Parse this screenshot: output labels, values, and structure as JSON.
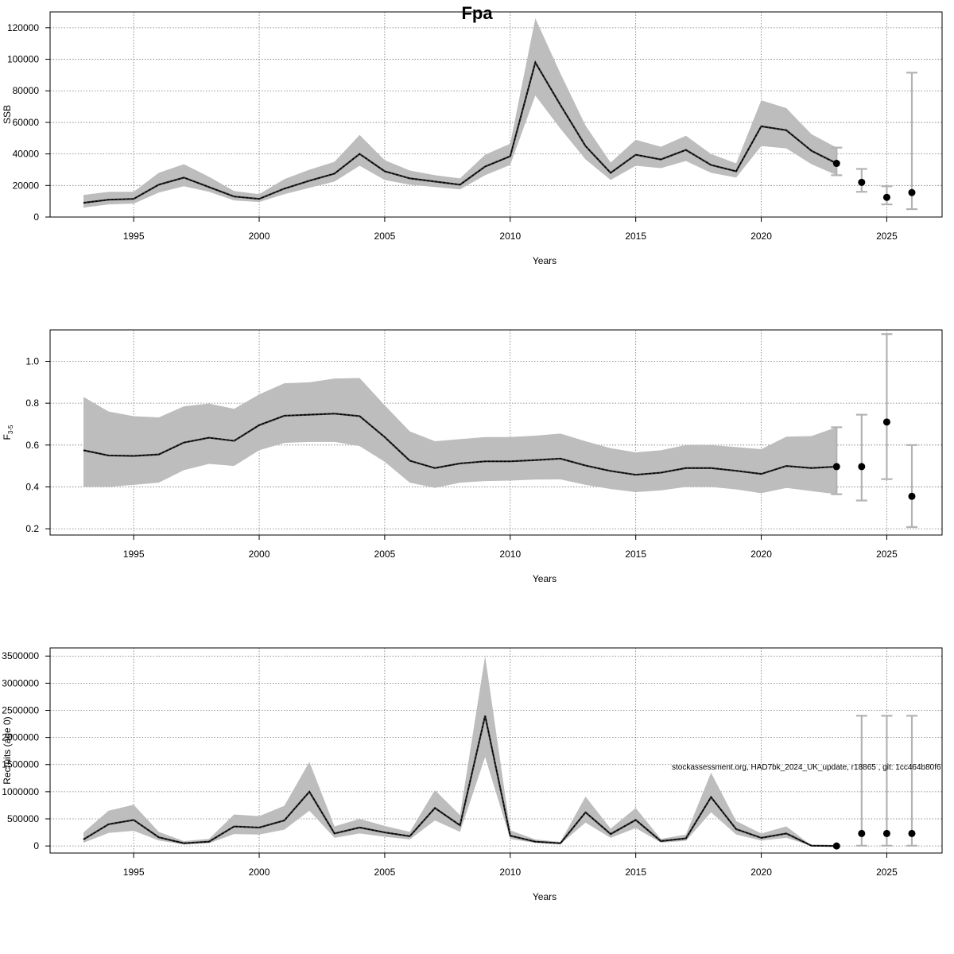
{
  "title": "Fpa",
  "watermark": "stockassessment.org, HAD7bk_2024_UK_update, r18865 , git: 1cc464b80f6",
  "colors": {
    "band": "#bdbdbd",
    "line": "#000000",
    "errorbar": "#b3b3b3",
    "grid": "#777777"
  },
  "chart_data": [
    {
      "type": "line",
      "ylabel": "SSB",
      "xlabel": "Years",
      "xlim": [
        1993,
        2026
      ],
      "ylim": [
        0,
        130000
      ],
      "xticks": [
        1995,
        2000,
        2005,
        2010,
        2015,
        2020,
        2025
      ],
      "xtick_labels": [
        "1995",
        "2000",
        "2005",
        "2010",
        "2015",
        "2020",
        "2025"
      ],
      "yticks": [
        0,
        20000,
        40000,
        60000,
        80000,
        100000,
        120000
      ],
      "ytick_labels": [
        "0",
        "20000",
        "40000",
        "60000",
        "80000",
        "100000",
        "120000"
      ],
      "grid": true,
      "x": [
        1993,
        1994,
        1995,
        1996,
        1997,
        1998,
        1999,
        2000,
        2001,
        2002,
        2003,
        2004,
        2005,
        2006,
        2007,
        2008,
        2009,
        2010,
        2011,
        2012,
        2013,
        2014,
        2015,
        2016,
        2017,
        2018,
        2019,
        2020,
        2021,
        2022,
        2023
      ],
      "y": [
        9000,
        11000,
        11500,
        20500,
        25000,
        19000,
        13000,
        11500,
        18000,
        23000,
        27500,
        40000,
        29000,
        24500,
        22500,
        20500,
        32000,
        38500,
        98000,
        71000,
        45000,
        28000,
        39500,
        36500,
        42500,
        33000,
        29000,
        57500,
        55000,
        42000,
        34000
      ],
      "low": [
        6000,
        8000,
        8500,
        15500,
        19500,
        16000,
        10500,
        9500,
        14500,
        18500,
        22500,
        32500,
        23500,
        20500,
        19000,
        17500,
        26500,
        33000,
        77000,
        56000,
        36500,
        23500,
        32500,
        31000,
        35500,
        28000,
        25000,
        45000,
        43500,
        33500,
        26500
      ],
      "high": [
        14000,
        16000,
        16000,
        28000,
        33500,
        25500,
        16500,
        14500,
        24000,
        30000,
        35000,
        52000,
        36000,
        29500,
        26500,
        24500,
        39500,
        46500,
        126000,
        91000,
        58000,
        34500,
        49000,
        44500,
        51500,
        40000,
        34000,
        74000,
        69000,
        52500,
        44000
      ],
      "forecast": [
        {
          "x": 2024,
          "y": 22000,
          "low": 16000,
          "high": 30500
        },
        {
          "x": 2025,
          "y": 12500,
          "low": 8000,
          "high": 19500
        },
        {
          "x": 2026,
          "y": 15500,
          "low": 5000,
          "high": 91500
        }
      ],
      "endpoint": {
        "x": 2023,
        "y": 34000,
        "low": 26500,
        "high": 44000
      }
    },
    {
      "type": "line",
      "ylabel": "F",
      "ylabel_subscript": "3-5",
      "xlabel": "Years",
      "xlim": [
        1993,
        2026
      ],
      "ylim": [
        0.17,
        1.15
      ],
      "xticks": [
        1995,
        2000,
        2005,
        2010,
        2015,
        2020,
        2025
      ],
      "xtick_labels": [
        "1995",
        "2000",
        "2005",
        "2010",
        "2015",
        "2020",
        "2025"
      ],
      "yticks": [
        0.2,
        0.4,
        0.6,
        0.8,
        1.0
      ],
      "ytick_labels": [
        "0.2",
        "0.4",
        "0.6",
        "0.8",
        "1.0"
      ],
      "grid": true,
      "x": [
        1993,
        1994,
        1995,
        1996,
        1997,
        1998,
        1999,
        2000,
        2001,
        2002,
        2003,
        2004,
        2005,
        2006,
        2007,
        2008,
        2009,
        2010,
        2011,
        2012,
        2013,
        2014,
        2015,
        2016,
        2017,
        2018,
        2019,
        2020,
        2021,
        2022,
        2023
      ],
      "y": [
        0.575,
        0.55,
        0.548,
        0.555,
        0.612,
        0.635,
        0.62,
        0.695,
        0.74,
        0.745,
        0.75,
        0.738,
        0.638,
        0.525,
        0.49,
        0.512,
        0.522,
        0.522,
        0.528,
        0.535,
        0.502,
        0.476,
        0.458,
        0.468,
        0.49,
        0.49,
        0.477,
        0.462,
        0.5,
        0.49,
        0.497
      ],
      "low": [
        0.4,
        0.4,
        0.41,
        0.42,
        0.48,
        0.51,
        0.5,
        0.575,
        0.61,
        0.615,
        0.615,
        0.595,
        0.52,
        0.42,
        0.395,
        0.42,
        0.428,
        0.43,
        0.435,
        0.436,
        0.41,
        0.39,
        0.375,
        0.383,
        0.4,
        0.4,
        0.388,
        0.37,
        0.395,
        0.38,
        0.365
      ],
      "high": [
        0.83,
        0.76,
        0.738,
        0.732,
        0.785,
        0.798,
        0.773,
        0.842,
        0.895,
        0.9,
        0.918,
        0.92,
        0.79,
        0.665,
        0.618,
        0.628,
        0.638,
        0.638,
        0.645,
        0.655,
        0.618,
        0.585,
        0.565,
        0.575,
        0.6,
        0.6,
        0.59,
        0.58,
        0.64,
        0.643,
        0.685
      ],
      "forecast": [
        {
          "x": 2024,
          "y": 0.497,
          "low": 0.335,
          "high": 0.745
        },
        {
          "x": 2025,
          "y": 0.71,
          "low": 0.437,
          "high": 1.13
        },
        {
          "x": 2026,
          "y": 0.355,
          "low": 0.208,
          "high": 0.6
        }
      ],
      "endpoint": {
        "x": 2023,
        "y": 0.497,
        "low": 0.365,
        "high": 0.685
      }
    },
    {
      "type": "line",
      "ylabel": "Recruits (age 0)",
      "xlabel": "Years",
      "xlim": [
        1993,
        2026
      ],
      "ylim": [
        -130000,
        3650000
      ],
      "xticks": [
        1995,
        2000,
        2005,
        2010,
        2015,
        2020,
        2025
      ],
      "xtick_labels": [
        "1995",
        "2000",
        "2005",
        "2010",
        "2015",
        "2020",
        "2025"
      ],
      "yticks": [
        0,
        500000,
        1000000,
        1500000,
        2000000,
        2500000,
        3000000,
        3500000
      ],
      "ytick_labels": [
        "0",
        "500000",
        "1000000",
        "1500000",
        "2000000",
        "2500000",
        "3000000",
        "3500000"
      ],
      "grid": true,
      "x": [
        1993,
        1994,
        1995,
        1996,
        1997,
        1998,
        1999,
        2000,
        2001,
        2002,
        2003,
        2004,
        2005,
        2006,
        2007,
        2008,
        2009,
        2010,
        2011,
        2012,
        2013,
        2014,
        2015,
        2016,
        2017,
        2018,
        2019,
        2020,
        2021,
        2022,
        2023
      ],
      "y": [
        120000,
        400000,
        480000,
        160000,
        50000,
        80000,
        360000,
        340000,
        470000,
        1000000,
        230000,
        340000,
        250000,
        180000,
        700000,
        380000,
        2400000,
        190000,
        80000,
        50000,
        620000,
        220000,
        480000,
        90000,
        140000,
        900000,
        310000,
        150000,
        230000,
        5000,
        0
      ],
      "low": [
        60000,
        240000,
        280000,
        100000,
        30000,
        50000,
        220000,
        210000,
        300000,
        650000,
        150000,
        230000,
        170000,
        120000,
        470000,
        260000,
        1640000,
        130000,
        55000,
        35000,
        430000,
        150000,
        330000,
        60000,
        95000,
        620000,
        210000,
        100000,
        150000,
        3000,
        0
      ],
      "high": [
        250000,
        650000,
        760000,
        260000,
        90000,
        130000,
        580000,
        550000,
        740000,
        1550000,
        360000,
        500000,
        370000,
        260000,
        1030000,
        570000,
        3500000,
        290000,
        120000,
        75000,
        910000,
        320000,
        700000,
        130000,
        210000,
        1350000,
        460000,
        230000,
        360000,
        8000,
        0
      ],
      "forecast": [
        {
          "x": 2024,
          "y": 230000,
          "low": 5000,
          "high": 2400000
        },
        {
          "x": 2025,
          "y": 230000,
          "low": 5000,
          "high": 2400000
        },
        {
          "x": 2026,
          "y": 230000,
          "low": 5000,
          "high": 2400000
        }
      ],
      "endpoint": {
        "x": 2023,
        "y": 0,
        "low": 0,
        "high": 0
      }
    }
  ]
}
